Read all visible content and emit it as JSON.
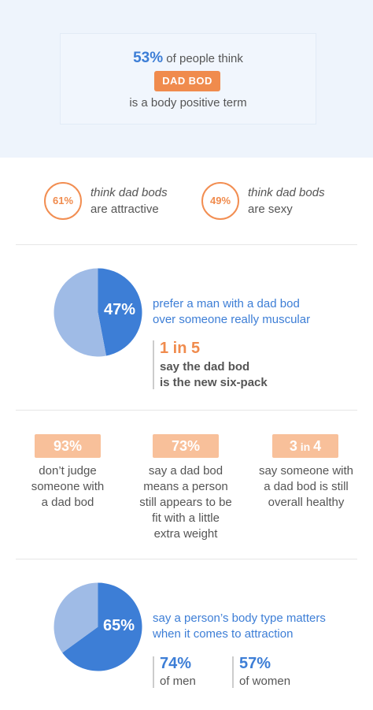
{
  "hero": {
    "stat": "53%",
    "text_after": " of people think",
    "badge": "DAD BOD",
    "line3": "is a body positive term"
  },
  "circles": [
    {
      "value": "61%",
      "line1": "think dad bods",
      "line2": "are attractive"
    },
    {
      "value": "49%",
      "line1": "think dad bods",
      "line2": "are sexy"
    }
  ],
  "section_prefer": {
    "text_line1": "prefer a man with a dad bod",
    "text_line2": "over someone really muscular",
    "stat": "1 in 5",
    "stat_line1": "say the dad bod",
    "stat_line2": "is the new six-pack"
  },
  "columns": [
    {
      "tag_main": "93%",
      "tag_small": "",
      "tag_end": "",
      "lines": [
        "don’t judge",
        "someone with",
        "a dad bod"
      ]
    },
    {
      "tag_main": "73%",
      "tag_small": "",
      "tag_end": "",
      "lines": [
        "say a dad bod",
        "means a person",
        "still appears to be",
        "fit with a little",
        "extra weight"
      ]
    },
    {
      "tag_main": "3",
      "tag_small": " in ",
      "tag_end": "4",
      "lines": [
        "say someone with",
        "a dad bod is still",
        "overall healthy"
      ]
    }
  ],
  "section_body_type": {
    "text_line1": "say a person’s body type matters",
    "text_line2": "when it comes to attraction",
    "men_value": "74%",
    "men_label": "of men",
    "women_value": "57%",
    "women_label": "of women"
  },
  "colors": {
    "blue_dark": "#3d7ed6",
    "blue_light": "#9fbbe6",
    "orange": "#f08b4d",
    "orange_light": "#f8c09a"
  },
  "chart_data": [
    {
      "type": "pie",
      "values": [
        47,
        53
      ],
      "labels": [
        "47%",
        ""
      ]
    },
    {
      "type": "pie",
      "values": [
        65,
        35
      ],
      "labels": [
        "65%",
        ""
      ]
    }
  ]
}
